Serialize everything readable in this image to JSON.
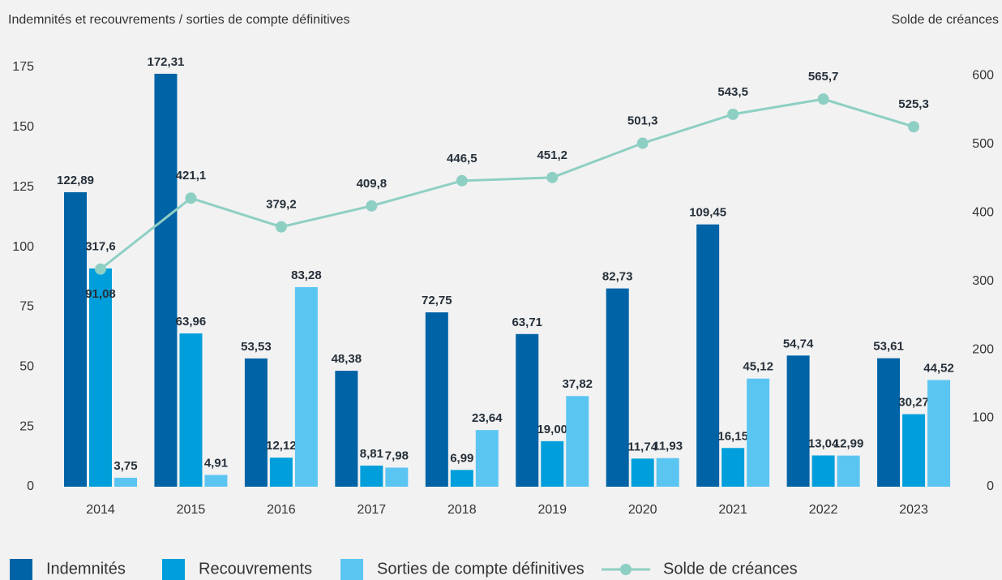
{
  "chart_data": {
    "type": "bar",
    "title": "Indemnités et recouvrements / sorties de compte définitives",
    "y2_title": "Solde de créances",
    "categories": [
      "2014",
      "2015",
      "2016",
      "2017",
      "2018",
      "2019",
      "2020",
      "2021",
      "2022",
      "2023"
    ],
    "ylim": [
      0,
      175
    ],
    "yticks": [
      0,
      25,
      50,
      75,
      100,
      125,
      150,
      175
    ],
    "y2lim": [
      0,
      612
    ],
    "y2ticks": [
      0,
      100,
      200,
      300,
      400,
      500,
      600
    ],
    "grid": false,
    "legend": "bottom",
    "series": [
      {
        "name": "Indemnités",
        "color": "#0063a6",
        "type": "bar",
        "values": [
          122.89,
          172.31,
          53.53,
          48.38,
          72.75,
          63.71,
          82.73,
          109.45,
          54.74,
          53.61
        ],
        "value_labels": [
          "122,89",
          "172,31",
          "53,53",
          "48,38",
          "72,75",
          "63,71",
          "82,73",
          "109,45",
          "54,74",
          "53,61"
        ]
      },
      {
        "name": "Recouvrements",
        "color": "#009fdb",
        "type": "bar",
        "values": [
          91.08,
          63.96,
          12.12,
          8.81,
          6.99,
          19.0,
          11.74,
          16.15,
          13.04,
          30.27
        ],
        "value_labels": [
          "91,08",
          "63,96",
          "12,12",
          "8,81",
          "6,99",
          "19,00",
          "11,74",
          "16,15",
          "13,04",
          "30,27"
        ]
      },
      {
        "name": "Sorties de compte définitives",
        "color": "#5bc5f2",
        "type": "bar",
        "values": [
          3.75,
          4.91,
          83.28,
          7.98,
          23.64,
          37.82,
          11.93,
          45.12,
          12.99,
          44.52
        ],
        "value_labels": [
          "3,75",
          "4,91",
          "83,28",
          "7,98",
          "23,64",
          "37,82",
          "11,93",
          "45,12",
          "12,99",
          "44,52"
        ]
      },
      {
        "name": "Solde de créances",
        "color": "#8ecfc4",
        "type": "line",
        "axis": "y2",
        "values": [
          317.6,
          421.1,
          379.2,
          409.8,
          446.5,
          451.2,
          501.3,
          543.5,
          565.7,
          525.3
        ],
        "value_labels": [
          "317,6",
          "421,1",
          "379,2",
          "409,8",
          "446,5",
          "451,2",
          "501,3",
          "543,5",
          "565,7",
          "525,3"
        ]
      }
    ]
  }
}
